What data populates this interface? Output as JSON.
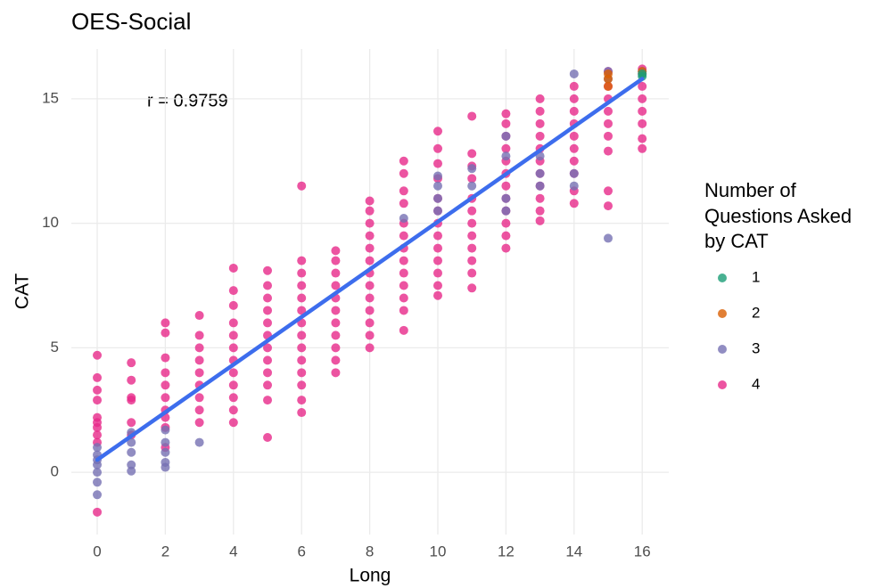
{
  "chart_data": {
    "type": "scatter",
    "title": "OES-Social",
    "x_label": "Long",
    "y_label": "CAT",
    "annotation": "r = 0.9759",
    "legend_title": [
      "Number of",
      "Questions Asked",
      "by CAT"
    ],
    "xlim": [
      -0.76,
      16.78
    ],
    "ylim": [
      -2.5,
      17
    ],
    "xticks": [
      0,
      2,
      4,
      6,
      8,
      10,
      12,
      14,
      16
    ],
    "yticks": [
      0,
      5,
      10,
      15
    ],
    "grid": true,
    "legend": "right",
    "series": [
      {
        "name": "1",
        "color": "#1b9e77",
        "x": [
          16,
          16
        ],
        "values": [
          16.0,
          15.9
        ]
      },
      {
        "name": "2",
        "color": "#d95f02",
        "x": [
          15,
          15,
          15,
          16
        ],
        "values": [
          16.0,
          15.8,
          15.5,
          16.1
        ]
      },
      {
        "name": "3",
        "color": "#7570b3",
        "x": [
          0,
          0,
          0,
          0,
          0,
          0,
          0,
          1,
          1,
          1,
          1,
          1,
          2,
          2,
          2,
          2,
          2,
          3,
          9,
          10,
          10,
          10,
          10,
          11,
          11,
          12,
          12,
          12,
          12,
          13,
          13,
          13,
          14,
          14,
          14,
          15,
          15,
          15,
          16
        ],
        "values": [
          1.0,
          0.7,
          0.5,
          0.3,
          0.0,
          -0.4,
          -0.9,
          1.6,
          1.2,
          0.8,
          0.3,
          0.05,
          1.7,
          1.2,
          0.8,
          0.4,
          0.2,
          1.2,
          10.2,
          11.9,
          11.5,
          11.0,
          10.5,
          12.2,
          11.5,
          13.5,
          12.7,
          11.0,
          10.5,
          12.7,
          12.0,
          11.5,
          16.0,
          12.0,
          11.5,
          16.1,
          15.8,
          9.4,
          16.1
        ]
      },
      {
        "name": "4",
        "color": "#e7298a",
        "x": [
          0,
          0,
          0,
          0,
          0,
          0,
          0,
          0,
          0,
          0,
          1,
          1,
          1,
          1,
          1,
          1,
          2,
          2,
          2,
          2,
          2,
          2,
          2,
          2,
          2,
          2,
          3,
          3,
          3,
          3,
          3,
          3,
          3,
          3,
          3,
          4,
          4,
          4,
          4,
          4,
          4,
          4,
          4,
          4,
          4,
          4,
          4,
          5,
          5,
          5,
          5,
          5,
          5,
          5,
          5,
          5,
          5,
          5,
          5,
          6,
          6,
          6,
          6,
          6,
          6,
          6,
          6,
          6,
          6,
          6,
          6,
          6,
          6,
          7,
          7,
          7,
          7,
          7,
          7,
          7,
          7,
          7,
          7,
          7,
          8,
          8,
          8,
          8,
          8,
          8,
          8,
          8,
          8,
          8,
          8,
          8,
          8,
          9,
          9,
          9,
          9,
          9,
          9,
          9,
          9,
          9,
          9,
          9,
          9,
          9,
          10,
          10,
          10,
          10,
          10,
          10,
          10,
          10,
          10,
          10,
          10,
          10,
          10,
          11,
          11,
          11,
          11,
          11,
          11,
          11,
          11,
          11,
          11,
          11,
          11,
          12,
          12,
          12,
          12,
          12,
          12,
          12,
          12,
          12,
          12,
          12,
          12,
          13,
          13,
          13,
          13,
          13,
          13,
          13,
          13,
          13,
          13,
          13,
          14,
          14,
          14,
          14,
          14,
          14,
          14,
          14,
          14,
          14,
          15,
          15,
          15,
          15,
          15,
          15,
          15,
          15,
          15,
          16,
          16,
          16,
          16,
          16,
          16,
          16,
          16
        ],
        "values": [
          4.7,
          3.8,
          3.3,
          2.9,
          2.2,
          2.0,
          1.8,
          1.5,
          1.2,
          -1.6,
          4.4,
          3.7,
          3.0,
          2.9,
          2.0,
          1.5,
          6.0,
          5.6,
          4.6,
          4.0,
          3.5,
          3.0,
          2.5,
          2.2,
          1.8,
          1.0,
          6.3,
          5.5,
          5.0,
          4.5,
          4.0,
          3.5,
          3.0,
          2.5,
          2.0,
          8.2,
          7.3,
          6.7,
          6.0,
          5.5,
          5.0,
          4.5,
          4.0,
          3.5,
          3.0,
          2.5,
          2.0,
          8.1,
          7.5,
          7.0,
          6.5,
          6.0,
          5.5,
          5.0,
          4.5,
          4.0,
          3.5,
          2.9,
          1.4,
          11.5,
          8.5,
          8.0,
          7.5,
          7.0,
          6.5,
          6.0,
          5.5,
          5.0,
          4.5,
          4.0,
          3.5,
          2.9,
          2.4,
          8.9,
          8.5,
          8.0,
          7.5,
          7.0,
          6.5,
          6.0,
          5.5,
          5.0,
          4.5,
          4.0,
          10.9,
          10.5,
          10.0,
          9.5,
          9.0,
          8.5,
          8.0,
          7.5,
          7.0,
          6.5,
          6.0,
          5.5,
          5.0,
          12.5,
          12.0,
          11.3,
          10.8,
          10.0,
          9.5,
          9.0,
          8.5,
          8.0,
          7.5,
          7.0,
          6.5,
          5.7,
          13.7,
          13.0,
          12.4,
          11.8,
          11.0,
          10.5,
          10.0,
          9.5,
          9.0,
          8.5,
          8.0,
          7.5,
          7.1,
          14.3,
          12.8,
          12.3,
          11.8,
          11.0,
          10.5,
          10.0,
          9.5,
          9.0,
          8.5,
          8.0,
          7.4,
          14.4,
          14.0,
          13.5,
          13.0,
          12.5,
          12.0,
          11.5,
          11.0,
          10.5,
          10.0,
          9.5,
          9.0,
          15.0,
          14.5,
          14.0,
          13.5,
          13.0,
          12.5,
          12.0,
          11.5,
          11.0,
          10.5,
          10.1,
          15.5,
          15.0,
          14.5,
          14.0,
          13.5,
          13.0,
          12.5,
          12.0,
          11.3,
          10.8,
          16.1,
          15.5,
          15.0,
          14.5,
          14.0,
          13.5,
          12.9,
          11.3,
          10.7,
          16.2,
          16.0,
          15.5,
          15.0,
          14.5,
          14.0,
          13.4,
          13.0
        ]
      }
    ],
    "trend": {
      "color": "#3d6ded",
      "x": [
        0,
        16
      ],
      "values": [
        0.5,
        15.8
      ]
    }
  }
}
